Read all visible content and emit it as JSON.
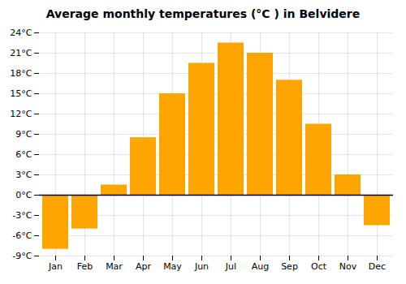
{
  "chart_data": {
    "type": "bar",
    "title": "Average monthly temperatures (°C ) in Belvidere",
    "categories": [
      "Jan",
      "Feb",
      "Mar",
      "Apr",
      "May",
      "Jun",
      "Jul",
      "Aug",
      "Sep",
      "Oct",
      "Nov",
      "Dec"
    ],
    "values": [
      -8,
      -5,
      1.5,
      8.5,
      15,
      19.5,
      22.5,
      21,
      17,
      10.5,
      3,
      -4.5
    ],
    "color": "#FFA500",
    "ylim": [
      -9,
      24
    ],
    "yticks": [
      {
        "value": -9,
        "label": "-9°C"
      },
      {
        "value": -6,
        "label": "-6°C"
      },
      {
        "value": -3,
        "label": "-3°C"
      },
      {
        "value": 0,
        "label": "0°C"
      },
      {
        "value": 3,
        "label": "3°C"
      },
      {
        "value": 6,
        "label": "6°C"
      },
      {
        "value": 9,
        "label": "9°C"
      },
      {
        "value": 12,
        "label": "12°C"
      },
      {
        "value": 15,
        "label": "15°C"
      },
      {
        "value": 18,
        "label": "18°C"
      },
      {
        "value": 21,
        "label": "21°C"
      },
      {
        "value": 24,
        "label": "24°C"
      }
    ],
    "grid": true
  }
}
